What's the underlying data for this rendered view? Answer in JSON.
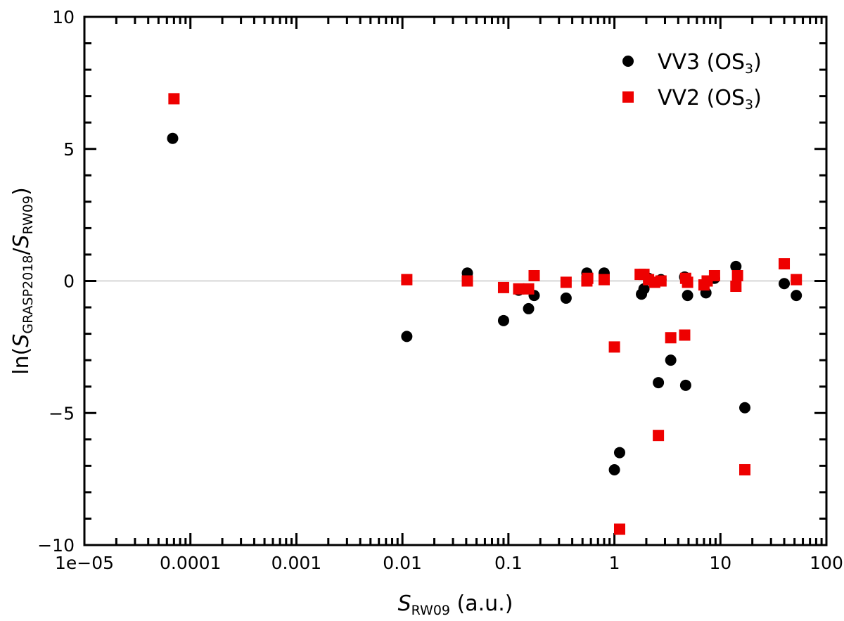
{
  "chart_data": {
    "type": "scatter",
    "xscale": "log",
    "xlim": [
      1e-05,
      100
    ],
    "ylim": [
      -10,
      10
    ],
    "x_ticks": [
      {
        "value": 1e-05,
        "label": "1e−05"
      },
      {
        "value": 0.0001,
        "label": "0.0001"
      },
      {
        "value": 0.001,
        "label": "0.001"
      },
      {
        "value": 0.01,
        "label": "0.01"
      },
      {
        "value": 0.1,
        "label": "0.1"
      },
      {
        "value": 1,
        "label": "1"
      },
      {
        "value": 10,
        "label": "10"
      },
      {
        "value": 100,
        "label": "100"
      }
    ],
    "y_ticks": [
      {
        "value": 10,
        "label": "10"
      },
      {
        "value": 5,
        "label": "5"
      },
      {
        "value": 0,
        "label": "0"
      },
      {
        "value": -5,
        "label": "−5"
      },
      {
        "value": -10,
        "label": "−10"
      }
    ],
    "xlabel": {
      "symbol": "S",
      "sub": "RW09",
      "rest": " (a.u.)"
    },
    "ylabel": {
      "prefix": "ln(",
      "s1": "S",
      "sub1": "GRASP2018",
      "slash": "/",
      "s2": "S",
      "sub2": "RW09",
      "suffix": ")"
    },
    "reference_line_y": 0,
    "legend_position": "top-right",
    "series": [
      {
        "name": "VV3 (OS3)",
        "legend": {
          "main": "VV3 (OS",
          "sub": "3",
          "end": ")"
        },
        "marker": "circle",
        "color": "#000000",
        "points": [
          [
            6.8e-05,
            5.4
          ],
          [
            0.011,
            -2.1
          ],
          [
            0.041,
            0.3
          ],
          [
            0.09,
            -1.5
          ],
          [
            0.125,
            -0.35
          ],
          [
            0.155,
            -1.05
          ],
          [
            0.175,
            -0.55
          ],
          [
            0.35,
            -0.65
          ],
          [
            0.55,
            0.3
          ],
          [
            0.8,
            0.3
          ],
          [
            1.0,
            -7.15
          ],
          [
            1.12,
            -6.5
          ],
          [
            1.8,
            -0.5
          ],
          [
            1.9,
            -0.3
          ],
          [
            2.1,
            0.1
          ],
          [
            2.6,
            -3.85
          ],
          [
            2.75,
            0.05
          ],
          [
            3.4,
            -3.0
          ],
          [
            4.6,
            0.15
          ],
          [
            4.7,
            -3.95
          ],
          [
            4.9,
            -0.55
          ],
          [
            7.3,
            -0.45
          ],
          [
            8.8,
            0.1
          ],
          [
            14.0,
            0.55
          ],
          [
            17.0,
            -4.8
          ],
          [
            40.0,
            -0.1
          ],
          [
            52.0,
            -0.55
          ]
        ]
      },
      {
        "name": "VV2 (OS3)",
        "legend": {
          "main": "VV2 (OS",
          "sub": "3",
          "end": ")"
        },
        "marker": "square",
        "color": "#ee0000",
        "points": [
          [
            7e-05,
            6.9
          ],
          [
            0.011,
            0.05
          ],
          [
            0.041,
            0.0
          ],
          [
            0.09,
            -0.25
          ],
          [
            0.125,
            -0.3
          ],
          [
            0.155,
            -0.3
          ],
          [
            0.175,
            0.2
          ],
          [
            0.35,
            -0.05
          ],
          [
            0.55,
            0.0
          ],
          [
            0.56,
            0.1
          ],
          [
            0.8,
            0.05
          ],
          [
            1.0,
            -2.5
          ],
          [
            1.12,
            -9.4
          ],
          [
            1.75,
            0.25
          ],
          [
            1.9,
            0.25
          ],
          [
            2.1,
            0.05
          ],
          [
            2.4,
            -0.05
          ],
          [
            2.6,
            -5.85
          ],
          [
            2.75,
            0.0
          ],
          [
            3.4,
            -2.15
          ],
          [
            4.6,
            -2.05
          ],
          [
            4.7,
            0.1
          ],
          [
            4.9,
            -0.05
          ],
          [
            7.0,
            -0.15
          ],
          [
            7.5,
            0.0
          ],
          [
            8.8,
            0.2
          ],
          [
            14.0,
            -0.2
          ],
          [
            14.5,
            0.2
          ],
          [
            17.0,
            -7.15
          ],
          [
            40.0,
            0.65
          ],
          [
            52.0,
            0.05
          ]
        ]
      }
    ]
  }
}
